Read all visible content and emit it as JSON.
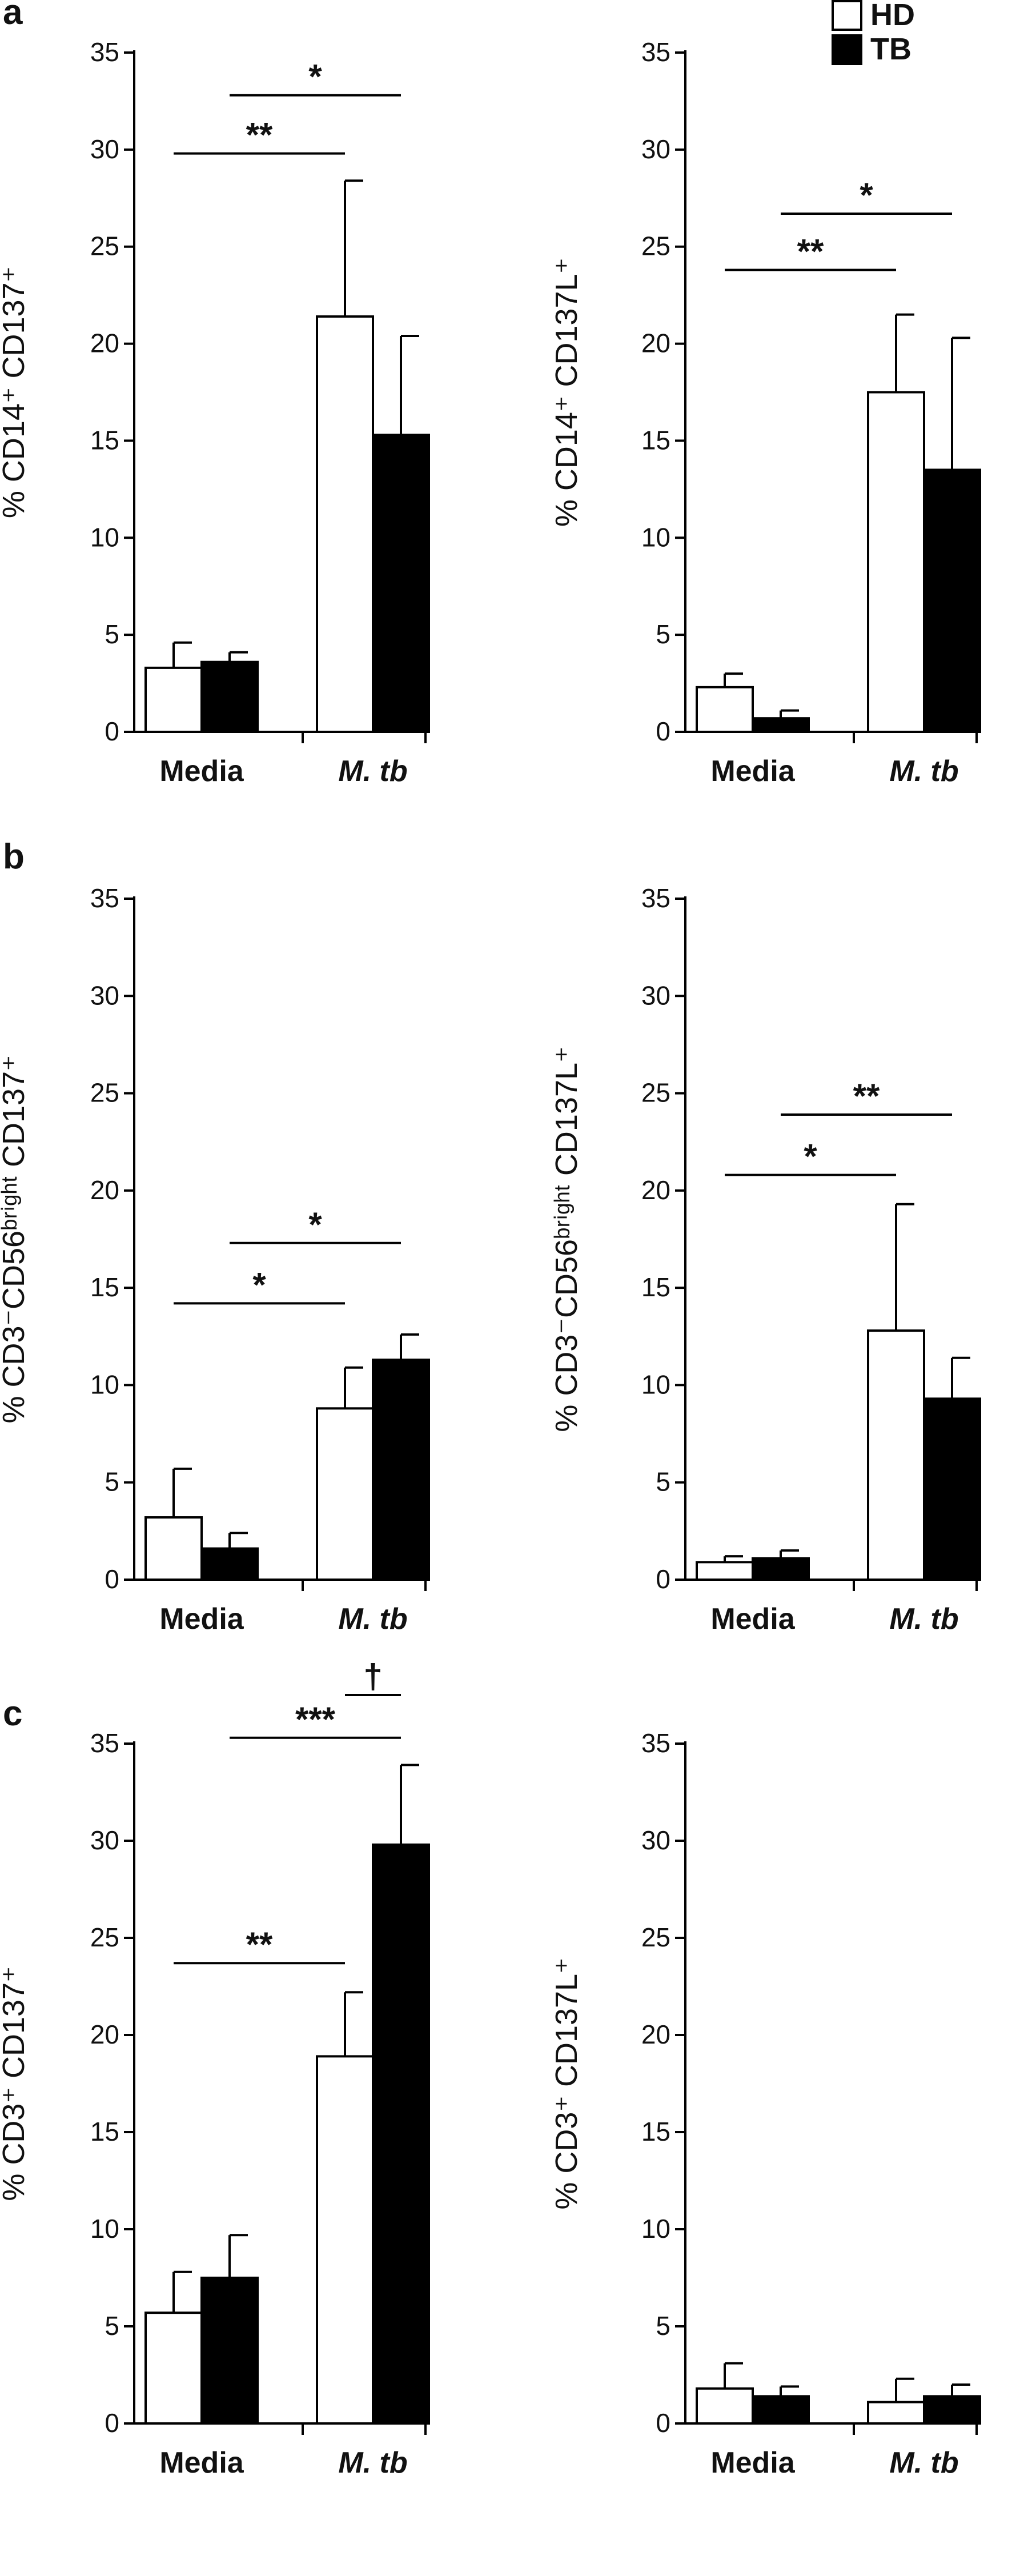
{
  "legend": {
    "position": "top-right",
    "entries": [
      {
        "label": "HD",
        "fill": "#ffffff"
      },
      {
        "label": "TB",
        "fill": "#000000"
      }
    ]
  },
  "panels": [
    {
      "letter": "a"
    },
    {
      "letter": "b"
    },
    {
      "letter": "c"
    }
  ],
  "chart_data": [
    {
      "type": "bar",
      "panel": "a",
      "ylabel": "% CD14⁺ CD137⁺",
      "ylim": [
        0,
        35
      ],
      "yticks": [
        0,
        5,
        10,
        15,
        20,
        25,
        30,
        35
      ],
      "categories": [
        "Media",
        "M. tb"
      ],
      "series": [
        {
          "name": "HD",
          "values": [
            3.3,
            21.4
          ],
          "errors": [
            1.3,
            7.0
          ]
        },
        {
          "name": "TB",
          "values": [
            3.6,
            15.3
          ],
          "errors": [
            0.5,
            5.1
          ]
        }
      ],
      "annotations": [
        {
          "text": "**",
          "from": [
            0,
            "HD"
          ],
          "to": [
            1,
            "HD"
          ],
          "y": 29.8
        },
        {
          "text": "*",
          "from": [
            0,
            "TB"
          ],
          "to": [
            1,
            "TB"
          ],
          "y": 32.8
        }
      ]
    },
    {
      "type": "bar",
      "panel": "a",
      "ylabel": "% CD14⁺ CD137L⁺",
      "ylim": [
        0,
        35
      ],
      "yticks": [
        0,
        5,
        10,
        15,
        20,
        25,
        30,
        35
      ],
      "categories": [
        "Media",
        "M. tb"
      ],
      "series": [
        {
          "name": "HD",
          "values": [
            2.3,
            17.5
          ],
          "errors": [
            0.7,
            4.0
          ]
        },
        {
          "name": "TB",
          "values": [
            0.7,
            13.5
          ],
          "errors": [
            0.4,
            6.8
          ]
        }
      ],
      "annotations": [
        {
          "text": "**",
          "from": [
            0,
            "HD"
          ],
          "to": [
            1,
            "HD"
          ],
          "y": 23.8
        },
        {
          "text": "*",
          "from": [
            0,
            "TB"
          ],
          "to": [
            1,
            "TB"
          ],
          "y": 26.7
        }
      ]
    },
    {
      "type": "bar",
      "panel": "b",
      "ylabel": "% CD3⁻CD56ᵇʳⁱᵍʰᵗ CD137⁺",
      "ylim": [
        0,
        35
      ],
      "yticks": [
        0,
        5,
        10,
        15,
        20,
        25,
        30,
        35
      ],
      "categories": [
        "Media",
        "M. tb"
      ],
      "series": [
        {
          "name": "HD",
          "values": [
            3.2,
            8.8
          ],
          "errors": [
            2.5,
            2.1
          ]
        },
        {
          "name": "TB",
          "values": [
            1.6,
            11.3
          ],
          "errors": [
            0.8,
            1.3
          ]
        }
      ],
      "annotations": [
        {
          "text": "*",
          "from": [
            0,
            "HD"
          ],
          "to": [
            1,
            "HD"
          ],
          "y": 14.2
        },
        {
          "text": "*",
          "from": [
            0,
            "TB"
          ],
          "to": [
            1,
            "TB"
          ],
          "y": 17.3
        }
      ]
    },
    {
      "type": "bar",
      "panel": "b",
      "ylabel": "% CD3⁻CD56ᵇʳⁱᵍʰᵗ CD137L⁺",
      "ylim": [
        0,
        35
      ],
      "yticks": [
        0,
        5,
        10,
        15,
        20,
        25,
        30,
        35
      ],
      "categories": [
        "Media",
        "M. tb"
      ],
      "series": [
        {
          "name": "HD",
          "values": [
            0.9,
            12.8
          ],
          "errors": [
            0.3,
            6.5
          ]
        },
        {
          "name": "TB",
          "values": [
            1.1,
            9.3
          ],
          "errors": [
            0.4,
            2.1
          ]
        }
      ],
      "annotations": [
        {
          "text": "*",
          "from": [
            0,
            "HD"
          ],
          "to": [
            1,
            "HD"
          ],
          "y": 20.8
        },
        {
          "text": "**",
          "from": [
            0,
            "TB"
          ],
          "to": [
            1,
            "TB"
          ],
          "y": 23.9
        }
      ]
    },
    {
      "type": "bar",
      "panel": "c",
      "ylabel": "% CD3⁺ CD137⁺",
      "ylim": [
        0,
        35
      ],
      "yticks": [
        0,
        5,
        10,
        15,
        20,
        25,
        30,
        35
      ],
      "categories": [
        "Media",
        "M. tb"
      ],
      "series": [
        {
          "name": "HD",
          "values": [
            5.7,
            18.9
          ],
          "errors": [
            2.1,
            3.3
          ]
        },
        {
          "name": "TB",
          "values": [
            7.5,
            29.8
          ],
          "errors": [
            2.2,
            4.1
          ]
        }
      ],
      "annotations": [
        {
          "text": "**",
          "from": [
            0,
            "HD"
          ],
          "to": [
            1,
            "HD"
          ],
          "y": 23.7
        },
        {
          "text": "***",
          "from": [
            0,
            "TB"
          ],
          "to": [
            1,
            "TB"
          ],
          "y": 35.3
        },
        {
          "text": "†",
          "from": [
            1,
            "HD"
          ],
          "to": [
            1,
            "TB"
          ],
          "y": 37.5
        }
      ]
    },
    {
      "type": "bar",
      "panel": "c",
      "ylabel": "% CD3⁺ CD137L⁺",
      "ylim": [
        0,
        35
      ],
      "yticks": [
        0,
        5,
        10,
        15,
        20,
        25,
        30,
        35
      ],
      "categories": [
        "Media",
        "M. tb"
      ],
      "series": [
        {
          "name": "HD",
          "values": [
            1.8,
            1.1
          ],
          "errors": [
            1.3,
            1.2
          ]
        },
        {
          "name": "TB",
          "values": [
            1.4,
            1.4
          ],
          "errors": [
            0.5,
            0.6
          ]
        }
      ],
      "annotations": []
    }
  ]
}
